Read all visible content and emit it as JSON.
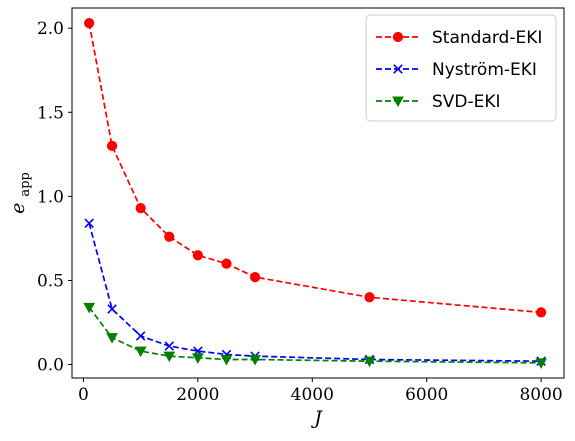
{
  "chart_data": {
    "type": "line",
    "title": "",
    "xlabel": "J",
    "ylabel": "e_app",
    "ylabel_main": "e",
    "ylabel_sub": "app",
    "xlim": [
      -200,
      8400
    ],
    "ylim": [
      -0.08,
      2.12
    ],
    "xticks": [
      0,
      2000,
      4000,
      6000,
      8000
    ],
    "xtick_labels": [
      "0",
      "2000",
      "4000",
      "6000",
      "8000"
    ],
    "yticks": [
      0.0,
      0.5,
      1.0,
      1.5,
      2.0
    ],
    "ytick_labels": [
      "0.0",
      "0.5",
      "1.0",
      "1.5",
      "2.0"
    ],
    "grid": false,
    "legend_position": "top-right",
    "x": [
      100,
      500,
      1000,
      1500,
      2000,
      2500,
      3000,
      5000,
      8000
    ],
    "series": [
      {
        "name": "Standard-EKI",
        "color": "#ff0000",
        "marker": "circle",
        "linestyle": "dashed",
        "values": [
          2.03,
          1.3,
          0.93,
          0.76,
          0.65,
          0.6,
          0.52,
          0.4,
          0.31
        ]
      },
      {
        "name": "Nyström-EKI",
        "color": "#0000ff",
        "marker": "x",
        "linestyle": "dashed",
        "values": [
          0.84,
          0.33,
          0.17,
          0.11,
          0.08,
          0.06,
          0.05,
          0.03,
          0.02
        ]
      },
      {
        "name": "SVD-EKI",
        "color": "#008000",
        "marker": "triangle-down",
        "linestyle": "dashed",
        "values": [
          0.34,
          0.16,
          0.08,
          0.05,
          0.04,
          0.03,
          0.03,
          0.02,
          0.01
        ]
      }
    ]
  }
}
